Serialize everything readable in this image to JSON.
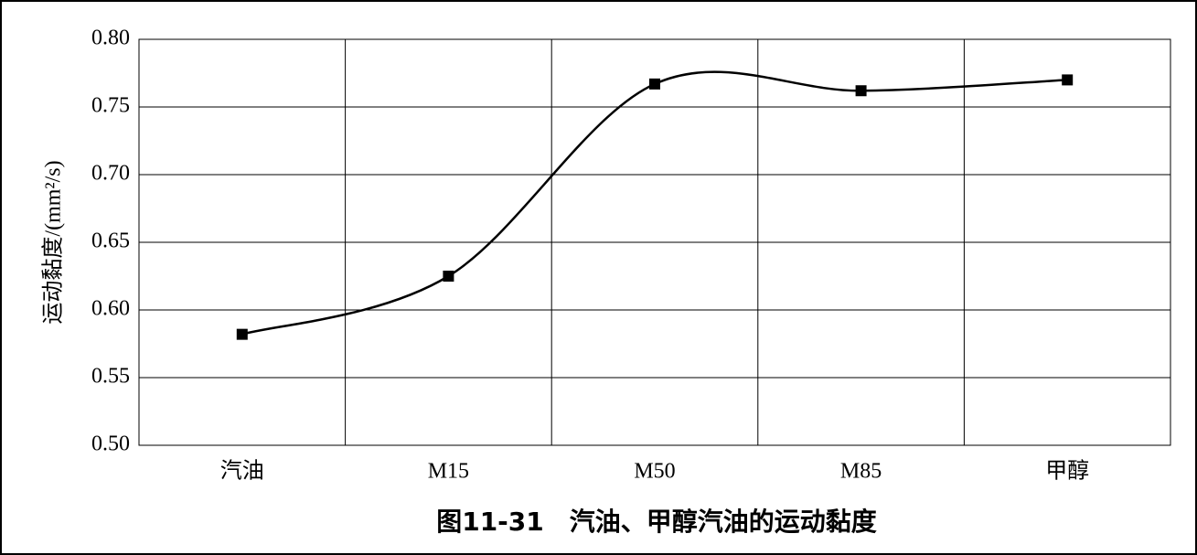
{
  "chart_data": {
    "type": "line",
    "title": "图11-31　汽油、甲醇汽油的运动黏度",
    "y_label": "运动黏度/(mm²/s)",
    "categories": [
      "汽油",
      "M15",
      "M50",
      "M85",
      "甲醇"
    ],
    "series": [
      {
        "name": "运动黏度",
        "color": "#000000",
        "values": [
          0.582,
          0.625,
          0.767,
          0.762,
          0.77
        ]
      }
    ],
    "ylim": [
      0.5,
      0.8
    ],
    "yticks": [
      {
        "value": 0.5,
        "label": "0.50"
      },
      0.55,
      {
        "value": 0.6,
        "label": "0.60"
      },
      0.65,
      {
        "value": 0.7,
        "label": "0.70"
      },
      0.75,
      {
        "value": 0.8,
        "label": "0.80"
      }
    ],
    "grid": true,
    "smooth": true,
    "legend": false
  }
}
